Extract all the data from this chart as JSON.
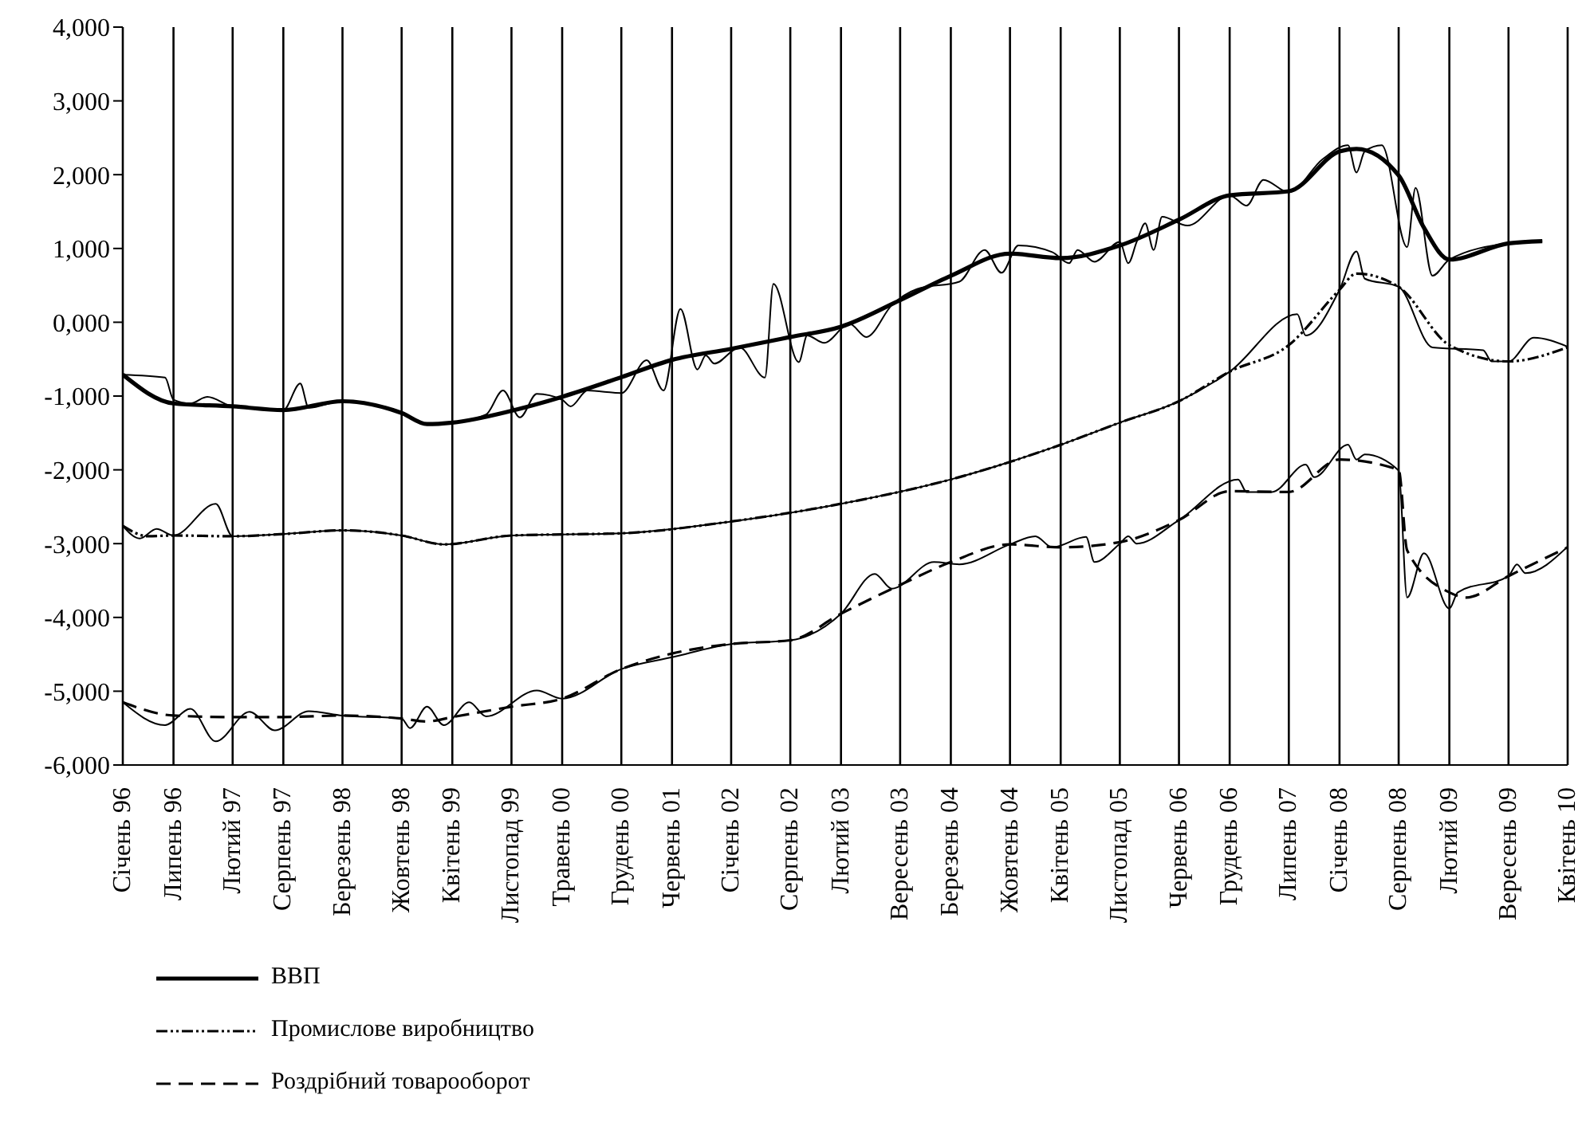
{
  "chart_data": {
    "type": "line",
    "xlim": [
      "1996-01",
      "2010-04"
    ],
    "xticks": [
      {
        "value": "1996-01",
        "label": "Січень 96"
      },
      {
        "value": "1996-07",
        "label": "Липень 96"
      },
      {
        "value": "1997-02",
        "label": "Лютий 97"
      },
      {
        "value": "1997-08",
        "label": "Серпень 97"
      },
      {
        "value": "1998-03",
        "label": "Березень 98"
      },
      {
        "value": "1998-10",
        "label": "Жовтень 98"
      },
      {
        "value": "1999-04",
        "label": "Квітень 99"
      },
      {
        "value": "1999-11",
        "label": "Листопад 99"
      },
      {
        "value": "2000-05",
        "label": "Травень 00"
      },
      {
        "value": "2000-12",
        "label": "Грудень 00"
      },
      {
        "value": "2001-06",
        "label": "Червень 01"
      },
      {
        "value": "2002-01",
        "label": "Січень 02"
      },
      {
        "value": "2002-08",
        "label": "Серпень 02"
      },
      {
        "value": "2003-02",
        "label": "Лютий 03"
      },
      {
        "value": "2003-09",
        "label": "Вересень 03"
      },
      {
        "value": "2004-03",
        "label": "Березень 04"
      },
      {
        "value": "2004-10",
        "label": "Жовтень 04"
      },
      {
        "value": "2005-04",
        "label": "Квітень 05"
      },
      {
        "value": "2005-11",
        "label": "Листопад 05"
      },
      {
        "value": "2006-06",
        "label": "Червень 06"
      },
      {
        "value": "2006-12",
        "label": "Грудень 06"
      },
      {
        "value": "2007-07",
        "label": "Липень 07"
      },
      {
        "value": "2008-01",
        "label": "Січень 08"
      },
      {
        "value": "2008-08",
        "label": "Серпень 08"
      },
      {
        "value": "2009-02",
        "label": "Лютий 09"
      },
      {
        "value": "2009-09",
        "label": "Вересень 09"
      },
      {
        "value": "2010-04",
        "label": "Квітень 10"
      }
    ],
    "ylim": [
      -6000,
      4000
    ],
    "yticks": [
      {
        "value": -6000,
        "label": "-6,000"
      },
      {
        "value": -5000,
        "label": "-5,000"
      },
      {
        "value": -4000,
        "label": "-4,000"
      },
      {
        "value": -3000,
        "label": "-3,000"
      },
      {
        "value": -2000,
        "label": "-2,000"
      },
      {
        "value": -1000,
        "label": "-1,000"
      },
      {
        "value": 0,
        "label": "0,000"
      },
      {
        "value": 1000,
        "label": "1,000"
      },
      {
        "value": 2000,
        "label": "2,000"
      },
      {
        "value": 3000,
        "label": "3,000"
      },
      {
        "value": 4000,
        "label": "4,000"
      }
    ],
    "grid": "x",
    "legend": "bottom",
    "marker": "none",
    "series": [
      {
        "name": "ВВП",
        "color": "#000000",
        "line_style": "solid",
        "x": [
          "1996-01",
          "1996-07",
          "1997-02",
          "1997-08",
          "1998-03",
          "1998-10",
          "1999-01",
          "1999-04",
          "1999-11",
          "2000-05",
          "2000-12",
          "2001-06",
          "2002-01",
          "2002-08",
          "2003-02",
          "2003-09",
          "2004-03",
          "2004-10",
          "2005-04",
          "2005-11",
          "2006-06",
          "2006-12",
          "2007-07",
          "2008-01",
          "2008-03",
          "2008-08",
          "2008-11",
          "2009-02",
          "2009-09",
          "2010-01"
        ],
        "values": [
          -710,
          -1100,
          -1140,
          -1190,
          -1070,
          -1230,
          -1380,
          -1360,
          -1200,
          -1010,
          -745,
          -510,
          -360,
          -200,
          -60,
          300,
          630,
          930,
          870,
          1040,
          1390,
          1720,
          1775,
          2315,
          2350,
          1990,
          1280,
          850,
          1070,
          1100
        ]
      },
      {
        "color": "#000000",
        "line_style": "solid",
        "x": [
          "1996-01",
          "1996-06",
          "1996-07",
          "1996-09",
          "1996-11",
          "1997-02",
          "1997-08",
          "1997-10",
          "1997-11",
          "1998-03",
          "1998-10",
          "1999-01",
          "1999-04",
          "1999-08",
          "1999-10",
          "1999-12",
          "2000-02",
          "2000-05",
          "2000-06",
          "2000-08",
          "2000-12",
          "2001-03",
          "2001-05",
          "2001-07",
          "2001-09",
          "2001-10",
          "2001-11",
          "2002-02",
          "2002-05",
          "2002-06",
          "2002-09",
          "2002-10",
          "2002-12",
          "2003-03",
          "2003-05",
          "2003-08",
          "2003-11",
          "2004-04",
          "2004-07",
          "2004-09",
          "2004-11",
          "2005-03",
          "2005-05",
          "2005-06",
          "2005-08",
          "2005-11",
          "2005-12",
          "2006-01",
          "2006-02",
          "2006-03",
          "2006-04",
          "2006-07",
          "2006-12",
          "2007-02",
          "2007-04",
          "2007-07",
          "2007-11",
          "2008-02",
          "2008-03",
          "2008-04",
          "2008-06",
          "2008-09",
          "2008-10",
          "2008-12",
          "2009-02",
          "2009-09",
          "2010-01"
        ],
        "values": [
          -710,
          -750,
          -1050,
          -1100,
          -1010,
          -1140,
          -1190,
          -830,
          -1160,
          -1070,
          -1230,
          -1380,
          -1360,
          -1250,
          -925,
          -1290,
          -970,
          -1050,
          -1140,
          -925,
          -960,
          -515,
          -925,
          180,
          -640,
          -450,
          -560,
          -340,
          -750,
          520,
          -540,
          -180,
          -280,
          -20,
          -200,
          230,
          450,
          550,
          980,
          670,
          1040,
          950,
          800,
          980,
          820,
          1090,
          800,
          1090,
          1340,
          980,
          1430,
          1310,
          1720,
          1580,
          1930,
          1760,
          2210,
          2400,
          2030,
          2320,
          2400,
          1020,
          1820,
          630,
          850,
          1070,
          1100
        ]
      },
      {
        "name": "Промислове виробництво",
        "color": "#000000",
        "line_style": "dotted",
        "x": [
          "1996-01",
          "1996-04",
          "1996-07",
          "1997-02",
          "1997-08",
          "1998-03",
          "1998-10",
          "1999-03",
          "1999-11",
          "2000-05",
          "2000-12",
          "2002-01",
          "2003-02",
          "2004-03",
          "2005-04",
          "2005-11",
          "2006-06",
          "2006-12",
          "2007-07",
          "2008-01",
          "2008-03",
          "2008-08",
          "2009-02",
          "2009-09",
          "2010-04"
        ],
        "values": [
          -2760,
          -2900,
          -2890,
          -2900,
          -2870,
          -2820,
          -2890,
          -3010,
          -2890,
          -2875,
          -2860,
          -2700,
          -2460,
          -2130,
          -1660,
          -1360,
          -1070,
          -670,
          -310,
          440,
          660,
          480,
          -310,
          -530,
          -340
        ]
      },
      {
        "color": "#000000",
        "line_style": "solid",
        "x": [
          "1996-01",
          "1996-03",
          "1996-05",
          "1996-07",
          "1996-12",
          "1997-02",
          "1997-08",
          "1998-03",
          "1998-10",
          "1999-03",
          "1999-11",
          "2000-05",
          "2000-12",
          "2002-01",
          "2003-02",
          "2004-03",
          "2005-04",
          "2005-11",
          "2006-06",
          "2006-12",
          "2007-08",
          "2007-09",
          "2008-01",
          "2008-03",
          "2008-04",
          "2008-08",
          "2008-12",
          "2009-06",
          "2009-07",
          "2009-09",
          "2009-12",
          "2010-04"
        ],
        "values": [
          -2760,
          -2930,
          -2800,
          -2890,
          -2460,
          -2900,
          -2870,
          -2820,
          -2890,
          -3010,
          -2890,
          -2875,
          -2860,
          -2700,
          -2460,
          -2130,
          -1660,
          -1360,
          -1070,
          -670,
          110,
          -180,
          440,
          960,
          590,
          480,
          -340,
          -380,
          -530,
          -530,
          -210,
          -330
        ]
      },
      {
        "name": "Роздрібний товарооборот",
        "color": "#000000",
        "line_style": "dashed",
        "x": [
          "1996-01",
          "1996-07",
          "1997-02",
          "1997-08",
          "1998-03",
          "1998-10",
          "1999-01",
          "1999-04",
          "1999-11",
          "2000-05",
          "2000-12",
          "2001-06",
          "2002-01",
          "2002-08",
          "2003-02",
          "2003-09",
          "2004-03",
          "2004-10",
          "2005-04",
          "2005-11",
          "2006-06",
          "2006-12",
          "2007-07",
          "2008-01",
          "2008-08",
          "2008-09",
          "2009-02",
          "2009-04",
          "2009-09",
          "2010-04"
        ],
        "values": [
          -5150,
          -5330,
          -5350,
          -5350,
          -5330,
          -5370,
          -5410,
          -5350,
          -5210,
          -5100,
          -4700,
          -4490,
          -4360,
          -4310,
          -3950,
          -3560,
          -3250,
          -3010,
          -3050,
          -2980,
          -2680,
          -2290,
          -2300,
          -1860,
          -2000,
          -3090,
          -3660,
          -3730,
          -3440,
          -3050
        ]
      },
      {
        "color": "#000000",
        "line_style": "solid",
        "x": [
          "1996-01",
          "1996-06",
          "1996-09",
          "1996-12",
          "1997-04",
          "1997-07",
          "1997-11",
          "1998-03",
          "1998-10",
          "1998-11",
          "1999-01",
          "1999-03",
          "1999-06",
          "1999-08",
          "2000-02",
          "2000-05",
          "2000-12",
          "2001-06",
          "2002-01",
          "2002-08",
          "2003-02",
          "2003-06",
          "2003-08",
          "2004-01",
          "2004-04",
          "2004-10",
          "2005-01",
          "2005-03",
          "2005-07",
          "2005-08",
          "2005-11",
          "2005-12",
          "2006-01",
          "2006-06",
          "2007-01",
          "2007-02",
          "2007-05",
          "2007-09",
          "2007-10",
          "2008-02",
          "2008-03",
          "2008-04",
          "2008-08",
          "2008-09",
          "2008-11",
          "2009-02",
          "2009-03",
          "2009-09",
          "2009-10",
          "2009-11",
          "2010-04"
        ],
        "values": [
          -5150,
          -5460,
          -5240,
          -5680,
          -5280,
          -5530,
          -5270,
          -5330,
          -5370,
          -5500,
          -5210,
          -5460,
          -5150,
          -5340,
          -4990,
          -5100,
          -4700,
          -4540,
          -4360,
          -4310,
          -3950,
          -3410,
          -3610,
          -3250,
          -3280,
          -3010,
          -2900,
          -3050,
          -2910,
          -3250,
          -3000,
          -2900,
          -3000,
          -2680,
          -2130,
          -2300,
          -2300,
          -1930,
          -2100,
          -1660,
          -1860,
          -1790,
          -2010,
          -3730,
          -3130,
          -3880,
          -3660,
          -3440,
          -3280,
          -3400,
          -3040
        ]
      }
    ]
  }
}
